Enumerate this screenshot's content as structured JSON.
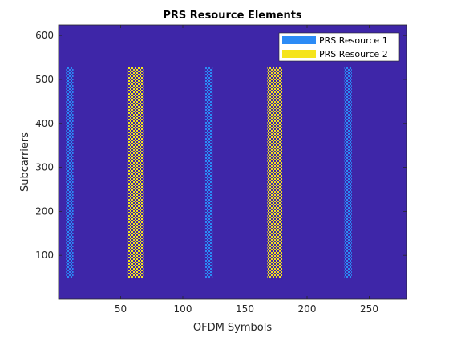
{
  "chart_data": {
    "type": "heatmap",
    "title": "PRS Resource Elements",
    "xlabel": "OFDM Symbols",
    "ylabel": "Subcarriers",
    "xlim": [
      0,
      280
    ],
    "ylim": [
      0,
      624
    ],
    "xticks": [
      50,
      100,
      150,
      200,
      250
    ],
    "yticks": [
      100,
      200,
      300,
      400,
      500,
      600
    ],
    "background_color": "#3e26a8",
    "grid": false,
    "legend_position": "top-right",
    "subcarrier_range": [
      49,
      528
    ],
    "series": [
      {
        "name": "PRS Resource 1",
        "color": "#2b8bf6",
        "symbol_blocks": [
          [
            6,
            12
          ],
          [
            118,
            124
          ],
          [
            230,
            236
          ]
        ]
      },
      {
        "name": "PRS Resource 2",
        "color": "#f5e41c",
        "symbol_blocks": [
          [
            56,
            68
          ],
          [
            168,
            180
          ]
        ]
      }
    ]
  }
}
